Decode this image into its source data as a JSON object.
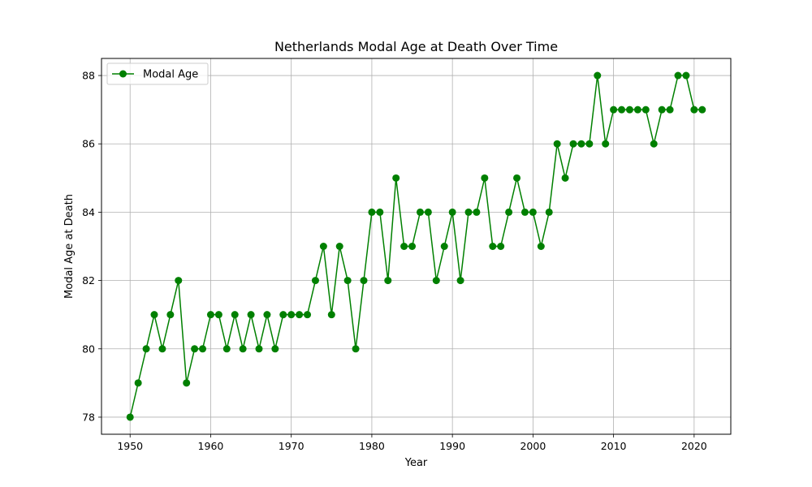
{
  "chart_data": {
    "type": "line",
    "title": "Netherlands Modal Age at Death Over Time",
    "xlabel": "Year",
    "ylabel": "Modal Age at Death",
    "xlim": [
      1946.45,
      2024.55
    ],
    "ylim": [
      77.5,
      88.5
    ],
    "xticks": [
      1950,
      1960,
      1970,
      1980,
      1990,
      2000,
      2010,
      2020
    ],
    "yticks": [
      78,
      80,
      82,
      84,
      86,
      88
    ],
    "grid": true,
    "legend_position": "top-left",
    "series": [
      {
        "name": "Modal Age",
        "color": "#008000",
        "marker": "circle",
        "x": [
          1950,
          1951,
          1952,
          1953,
          1954,
          1955,
          1956,
          1957,
          1958,
          1959,
          1960,
          1961,
          1962,
          1963,
          1964,
          1965,
          1966,
          1967,
          1968,
          1969,
          1970,
          1971,
          1972,
          1973,
          1974,
          1975,
          1976,
          1977,
          1978,
          1979,
          1980,
          1981,
          1982,
          1983,
          1984,
          1985,
          1986,
          1987,
          1988,
          1989,
          1990,
          1991,
          1992,
          1993,
          1994,
          1995,
          1996,
          1997,
          1998,
          1999,
          2000,
          2001,
          2002,
          2003,
          2004,
          2005,
          2006,
          2007,
          2008,
          2009,
          2010,
          2011,
          2012,
          2013,
          2014,
          2015,
          2016,
          2017,
          2018,
          2019,
          2020,
          2021
        ],
        "values": [
          78,
          79,
          80,
          81,
          80,
          81,
          82,
          79,
          80,
          80,
          81,
          81,
          80,
          81,
          80,
          81,
          80,
          81,
          80,
          81,
          81,
          81,
          81,
          82,
          83,
          81,
          83,
          82,
          80,
          82,
          84,
          84,
          82,
          85,
          83,
          83,
          84,
          84,
          82,
          83,
          84,
          82,
          84,
          84,
          85,
          83,
          83,
          84,
          85,
          84,
          84,
          83,
          84,
          86,
          85,
          86,
          86,
          86,
          88,
          86,
          87,
          87,
          87,
          87,
          87,
          86,
          87,
          87,
          88,
          88,
          87,
          87
        ]
      }
    ]
  }
}
